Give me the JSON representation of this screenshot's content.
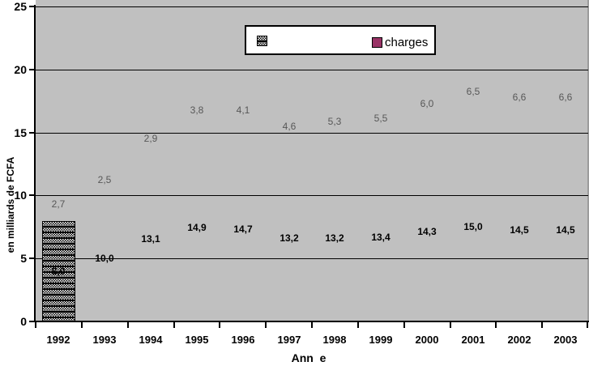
{
  "chart_data": {
    "type": "bar",
    "stacked": true,
    "title": "",
    "xlabel": "Ann  e",
    "ylabel": "en milliards de FCFA",
    "categories": [
      "1992",
      "1993",
      "1994",
      "1995",
      "1996",
      "1997",
      "1998",
      "1999",
      "2000",
      "2001",
      "2002",
      "2003"
    ],
    "yticks": [
      0,
      5,
      10,
      15,
      20,
      25
    ],
    "ylim": [
      0,
      25
    ],
    "grid": "horizontal",
    "series": [
      {
        "name": "",
        "swatch": "hatch",
        "values": [
          8.0,
          10.0,
          13.1,
          14.9,
          14.7,
          13.2,
          13.2,
          13.4,
          14.3,
          15.0,
          14.5,
          14.5
        ],
        "labels": [
          "8,0",
          "10,0",
          "13,1",
          "14,9",
          "14,7",
          "13,2",
          "13,2",
          "13,4",
          "14,3",
          "15,0",
          "14,5",
          "14,5"
        ],
        "bar_visible_for": [
          "1992"
        ]
      },
      {
        "name": "charges",
        "swatch": "solid",
        "swatch_color": "#993366",
        "values": [
          2.7,
          2.5,
          2.9,
          3.8,
          4.1,
          4.6,
          5.3,
          5.5,
          6.0,
          6.5,
          6.6,
          6.6
        ],
        "labels": [
          "2,7",
          "2,5",
          "2,9",
          "3,8",
          "4,1",
          "4,6",
          "5,3",
          "5,5",
          "6,0",
          "6,5",
          "6,6",
          "6,6"
        ]
      }
    ],
    "legend": {
      "position": "top-center",
      "entries": [
        {
          "label": "",
          "swatch": "hatch"
        },
        {
          "label": "charges",
          "swatch": "solid",
          "color": "#993366"
        }
      ]
    },
    "colors": {
      "plot_bg": "#c0c0c0",
      "gridline": "#000000",
      "charges": "#993366",
      "upper_label_gray": "#575757"
    }
  }
}
